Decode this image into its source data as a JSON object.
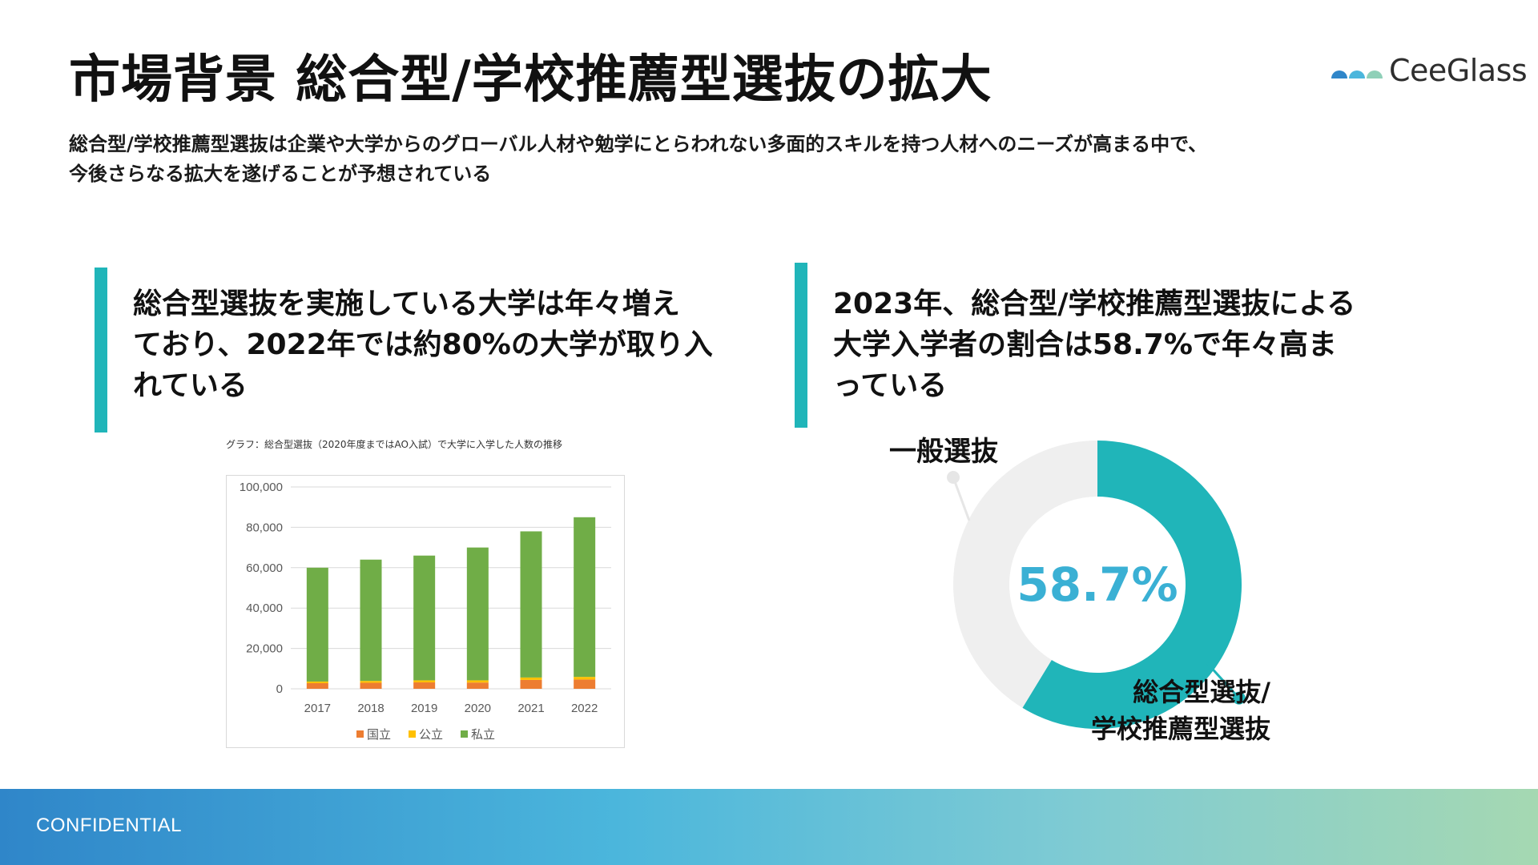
{
  "header": {
    "title": "市場背景 総合型/学校推薦型選抜の拡大",
    "logo_text": "CeeGlass"
  },
  "subtitle": {
    "line1": "総合型/学校推薦型選抜は企業や大学からのグローバル人材や勉学にとらわれない多面的スキルを持つ人材へのニーズが高まる中で、",
    "line2": "今後さらなる拡大を遂げることが予想されている"
  },
  "left_panel": {
    "heading_lines": [
      "総合型選抜を実施している大学は年々増え",
      "ており、2022年では約80%の大学が取り入",
      "れている"
    ]
  },
  "right_panel": {
    "heading_lines": [
      "2023年、総合型/学校推薦型選抜による",
      "大学入学者の割合は58.7%で年々高ま",
      "っている"
    ]
  },
  "footer": {
    "text": "CONFIDENTIAL"
  },
  "colors": {
    "accent": "#20b5b9",
    "kokuritsu": "#ed7d31",
    "kouritsu": "#ffc000",
    "shiritsu": "#70ad47",
    "donut_main": "#20b5b9",
    "donut_rest": "#efefef",
    "percent_text": "#3ab0d4"
  },
  "chart_data": [
    {
      "type": "bar",
      "stacked": true,
      "title": "グラフ：総合型選抜（2020年度まではAO入試）で大学に入学した人数の推移",
      "categories": [
        "2017",
        "2018",
        "2019",
        "2020",
        "2021",
        "2022"
      ],
      "series": [
        {
          "name": "国立",
          "values": [
            2800,
            3000,
            3200,
            3100,
            4400,
            4600
          ]
        },
        {
          "name": "公立",
          "values": [
            800,
            900,
            1000,
            1100,
            1200,
            1300
          ]
        },
        {
          "name": "私立",
          "values": [
            56400,
            60100,
            61800,
            65800,
            72400,
            79100
          ]
        }
      ],
      "ylim": [
        0,
        100000
      ],
      "yticks": [
        "0",
        "20,000",
        "40,000",
        "60,000",
        "80,000",
        "100,000"
      ],
      "ytick_values": [
        0,
        20000,
        40000,
        60000,
        80000,
        100000
      ],
      "grid": true,
      "legend_position": "bottom"
    },
    {
      "type": "pie",
      "donut": true,
      "slices": [
        {
          "label": "総合型選抜/\n学校推薦型選抜",
          "value": 58.7
        },
        {
          "label": "一般選抜",
          "value": 41.3
        }
      ],
      "center_label": "58.7%",
      "label_main_lines": [
        "総合型選抜/",
        "学校推薦型選抜"
      ],
      "label_rest": "一般選抜"
    }
  ]
}
